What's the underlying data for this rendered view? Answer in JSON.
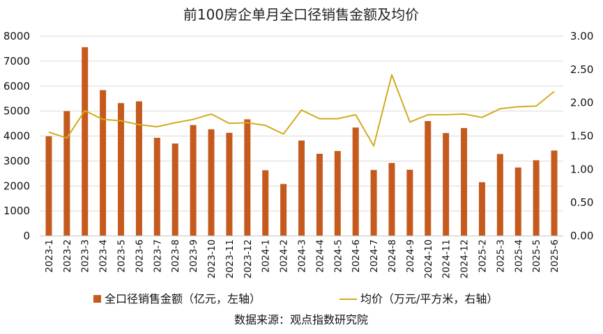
{
  "chart_data": {
    "type": "bar",
    "title": "前100房企单月全口径销售金额及均价",
    "source": "数据来源：观点指数研究院",
    "categories": [
      "2023-1",
      "2023-2",
      "2023-3",
      "2023-4",
      "2023-5",
      "2023-6",
      "2023-7",
      "2023-8",
      "2023-9",
      "2023-10",
      "2023-11",
      "2023-12",
      "2024-1",
      "2024-2",
      "2024-3",
      "2024-4",
      "2024-5",
      "2024-6",
      "2024-7",
      "2024-8",
      "2024-9",
      "2024-10",
      "2024-11",
      "2024-12",
      "2025-2",
      "2025-3",
      "2025-4",
      "2025-5",
      "2025-6"
    ],
    "series": [
      {
        "name": "全口径销售金额（亿元，左轴）",
        "type": "bar",
        "axis": "left",
        "color": "#C55A1E",
        "values": [
          3990,
          5000,
          7560,
          5840,
          5320,
          5390,
          3930,
          3700,
          4440,
          4270,
          4130,
          4670,
          2630,
          2080,
          3820,
          3290,
          3400,
          4340,
          2640,
          2920,
          2650,
          4600,
          4120,
          4320,
          2150,
          3280,
          2740,
          3030,
          3420
        ]
      },
      {
        "name": "均价（万元/平方米，右轴）",
        "type": "line",
        "axis": "right",
        "color": "#D4AA1E",
        "values": [
          1.56,
          1.47,
          1.88,
          1.75,
          1.73,
          1.67,
          1.64,
          1.7,
          1.75,
          1.83,
          1.69,
          1.7,
          1.66,
          1.53,
          1.89,
          1.76,
          1.76,
          1.82,
          1.35,
          2.42,
          1.71,
          1.82,
          1.82,
          1.83,
          1.78,
          1.91,
          1.94,
          1.95,
          2.17
        ]
      }
    ],
    "y_left": {
      "min": 0,
      "max": 8000,
      "ticks": [
        "0",
        "1000",
        "2000",
        "3000",
        "4000",
        "5000",
        "6000",
        "7000",
        "8000"
      ]
    },
    "y_right": {
      "min": 0,
      "max": 3,
      "ticks": [
        "0.00",
        "0.50",
        "1.00",
        "1.50",
        "2.00",
        "2.50",
        "3.00"
      ]
    },
    "grid": true,
    "legend_position": "bottom"
  }
}
